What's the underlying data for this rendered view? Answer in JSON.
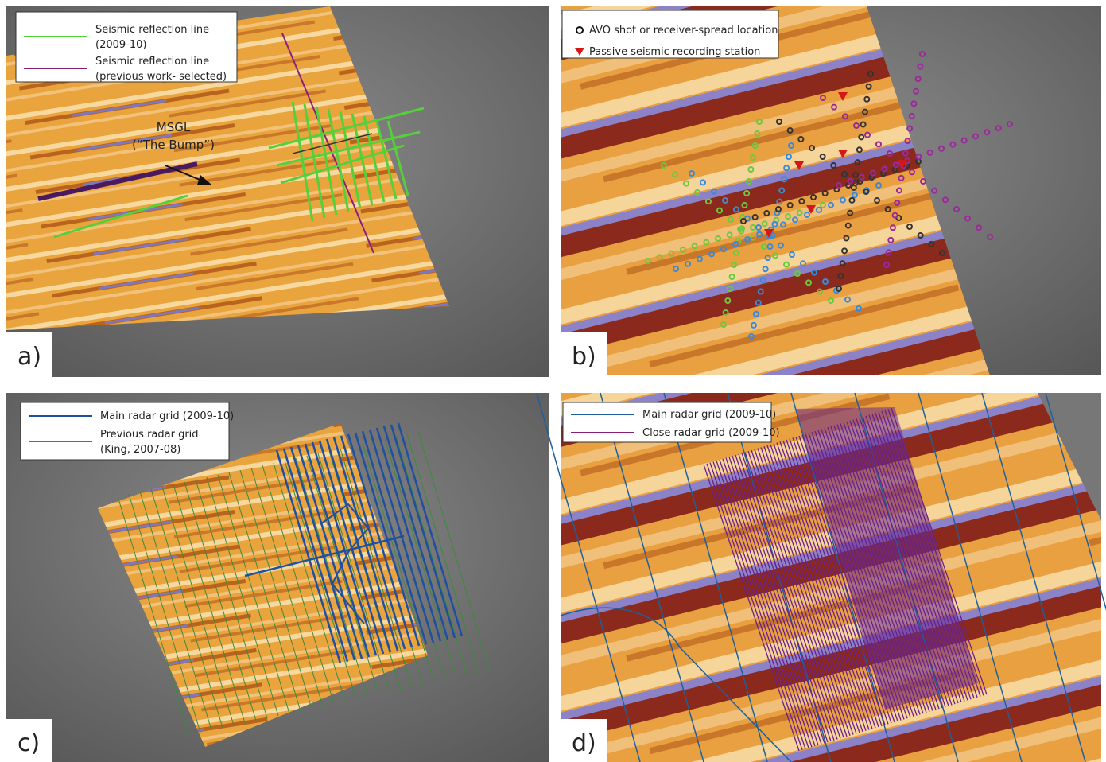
{
  "panels": [
    {
      "label": "a)",
      "legend": [
        {
          "lines": [
            "Seismic reflection line",
            "(2009-10)"
          ]
        },
        {
          "lines": [
            "Seismic reflection line",
            "(previous work- selected)"
          ]
        }
      ],
      "annotation": {
        "lines": [
          "MSGL",
          "(“The Bump”)"
        ]
      }
    },
    {
      "label": "b)",
      "legend": [
        {
          "lines": [
            "AVO shot or receiver-spread location"
          ]
        },
        {
          "lines": [
            "Passive seismic recording station"
          ]
        }
      ]
    },
    {
      "label": "c)",
      "legend": [
        {
          "lines": [
            "Main radar grid (2009-10)"
          ]
        },
        {
          "lines": [
            "Previous radar grid",
            "(King, 2007-08)"
          ]
        }
      ]
    },
    {
      "label": "d)",
      "legend": [
        {
          "lines": [
            "Main radar grid (2009-10)"
          ]
        },
        {
          "lines": [
            "Close radar grid (2009-10)"
          ]
        }
      ]
    }
  ]
}
